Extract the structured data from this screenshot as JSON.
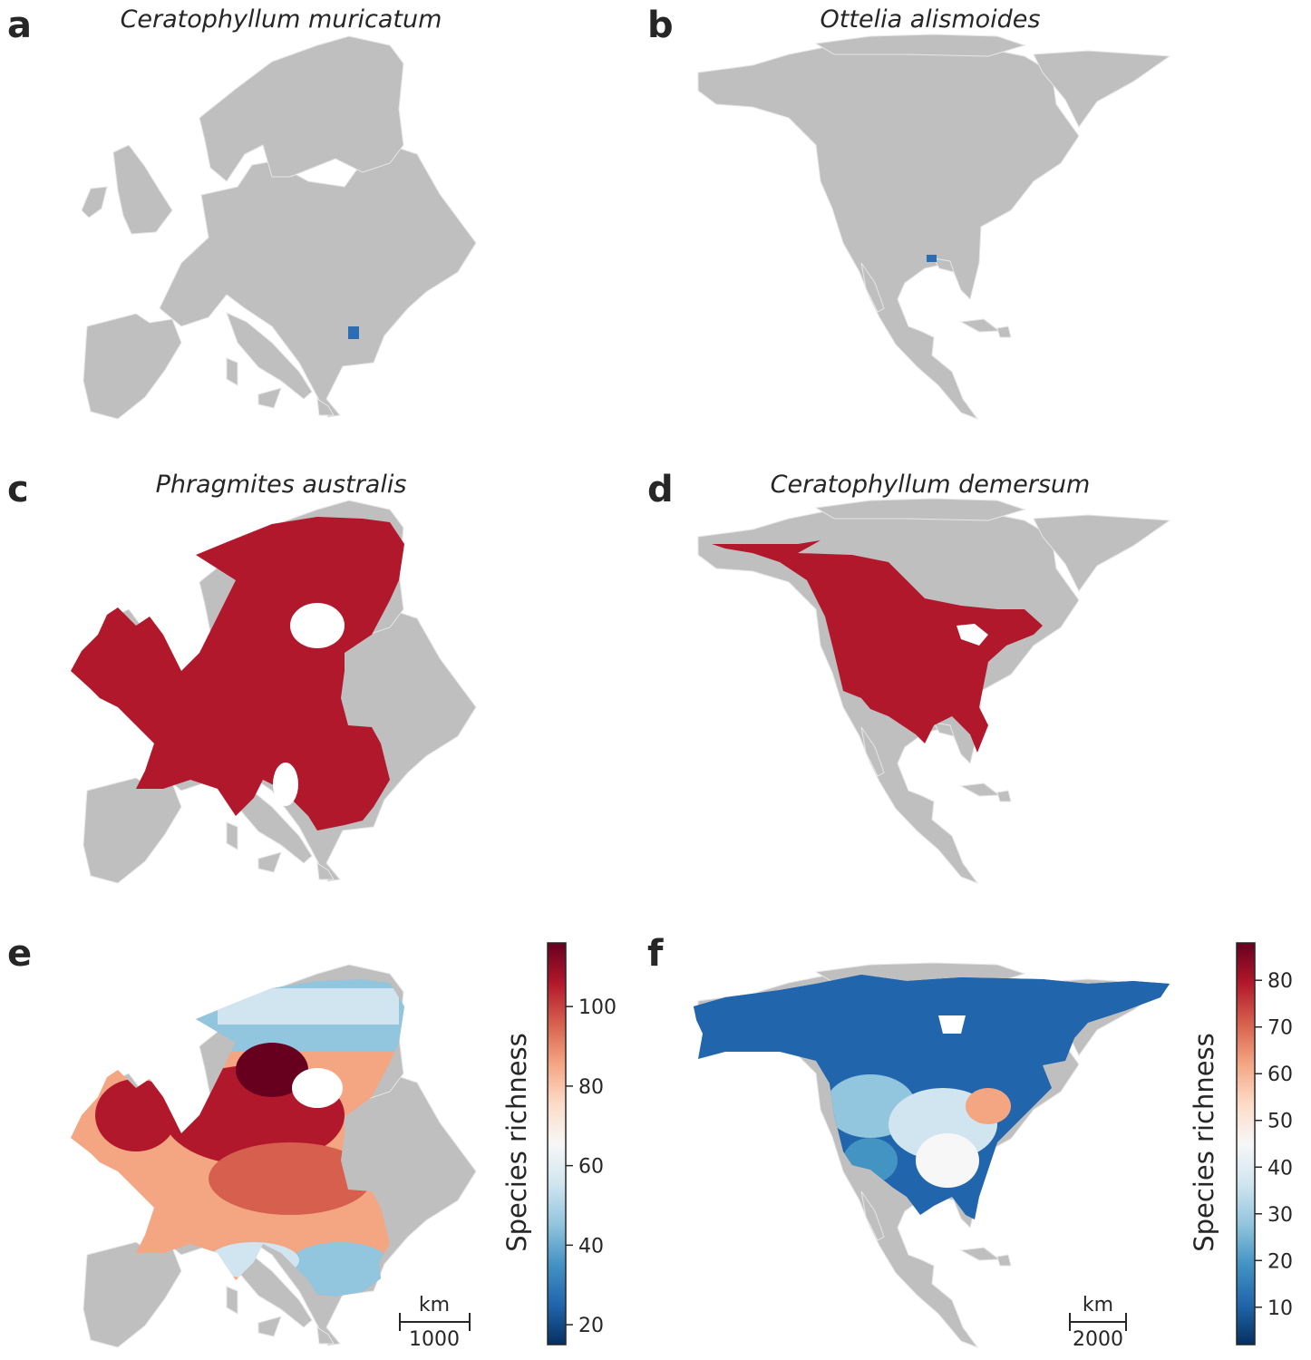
{
  "panels": {
    "a": {
      "letter": "a",
      "title": "Ceratophyllum muricatum",
      "region": "Europe"
    },
    "b": {
      "letter": "b",
      "title": "Ottelia alismoides",
      "region": "North America"
    },
    "c": {
      "letter": "c",
      "title": "Phragmites australis",
      "region": "Europe"
    },
    "d": {
      "letter": "d",
      "title": "Ceratophyllum demersum",
      "region": "North America"
    },
    "e": {
      "letter": "e",
      "title": "",
      "region": "Europe"
    },
    "f": {
      "letter": "f",
      "title": "",
      "region": "North America"
    }
  },
  "colors": {
    "land": "#bfbfbf",
    "border": "#e6e6e6",
    "presence_single": "#2f6db3",
    "presence_wide": "#b2182b",
    "cmap": [
      "#053061",
      "#2166ac",
      "#4393c3",
      "#92c5de",
      "#d1e5f0",
      "#f7f7f7",
      "#fddbc7",
      "#f4a582",
      "#d6604d",
      "#b2182b",
      "#67001f"
    ]
  },
  "colorbars": {
    "e": {
      "label": "Species richness",
      "ticks": [
        "20",
        "40",
        "60",
        "80",
        "100"
      ],
      "min": 15,
      "max": 116
    },
    "f": {
      "label": "Species richness",
      "ticks": [
        "10",
        "20",
        "30",
        "40",
        "50",
        "60",
        "70",
        "80"
      ],
      "min": 2,
      "max": 88
    }
  },
  "scalebars": {
    "e": {
      "unit": "km",
      "value": "1000"
    },
    "f": {
      "unit": "km",
      "value": "2000"
    }
  }
}
